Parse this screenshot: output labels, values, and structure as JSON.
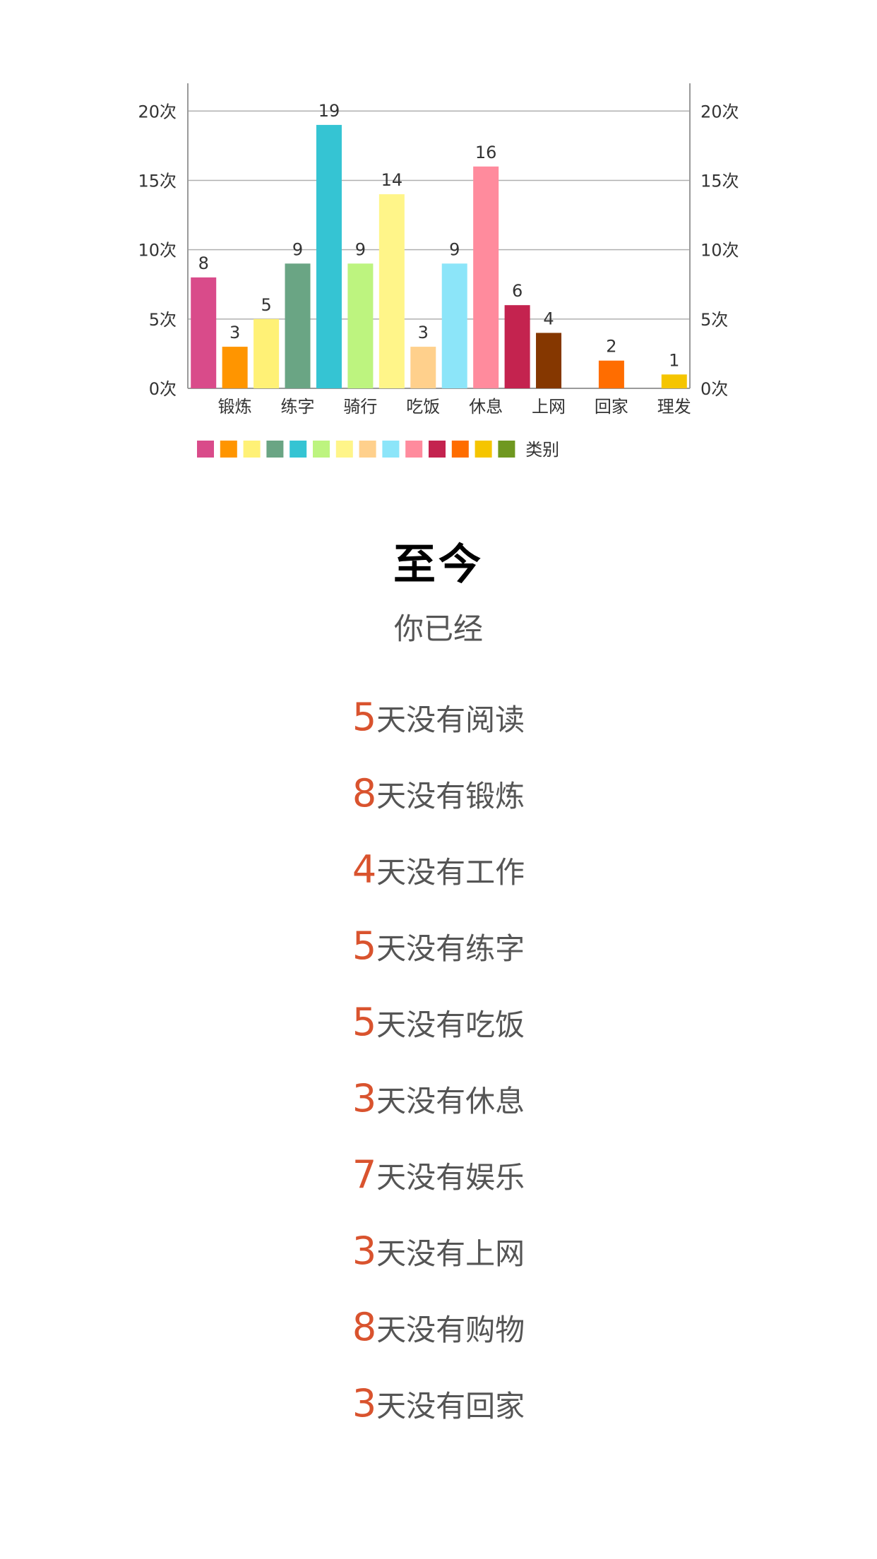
{
  "chart_data": {
    "type": "bar",
    "categories": [
      "",
      "锻炼",
      "",
      "练字",
      "",
      "骑行",
      "",
      "吃饭",
      "",
      "休息",
      "",
      "上网",
      "",
      "回家",
      "",
      "理发"
    ],
    "values": [
      8,
      3,
      5,
      9,
      19,
      9,
      14,
      3,
      9,
      16,
      6,
      4,
      null,
      2,
      null,
      1
    ],
    "colors": [
      "#d94b8a",
      "#ff9500",
      "#fff176",
      "#6aa584",
      "#35c4d3",
      "#bdf47f",
      "#fff589",
      "#ffd08c",
      "#8ce5f9",
      "#ff8b9d",
      "#c4234f",
      "#853700",
      "#ff6d00",
      "#f5c500",
      "#6f9820"
    ],
    "ylim": [
      0,
      22
    ],
    "yticks": [
      0,
      5,
      10,
      15,
      20
    ],
    "ytick_labels": [
      "0次",
      "5次",
      "10次",
      "15次",
      "20次"
    ],
    "legend_colors": [
      "#d94b8a",
      "#ff9500",
      "#fff176",
      "#6aa584",
      "#35c4d3",
      "#bdf47f",
      "#fff589",
      "#ffd08c",
      "#8ce5f9",
      "#ff8b9d",
      "#c4234f",
      "#ff6d00",
      "#f5c500",
      "#6f9820"
    ],
    "legend_label": "类别",
    "legend_position": "bottom-left",
    "grid": true
  },
  "summary": {
    "title": "至今",
    "subtitle": "你已经",
    "items": [
      {
        "count": "5",
        "text": "天没有阅读"
      },
      {
        "count": "8",
        "text": "天没有锻炼"
      },
      {
        "count": "4",
        "text": "天没有工作"
      },
      {
        "count": "5",
        "text": "天没有练字"
      },
      {
        "count": "5",
        "text": "天没有吃饭"
      },
      {
        "count": "3",
        "text": "天没有休息"
      },
      {
        "count": "7",
        "text": "天没有娱乐"
      },
      {
        "count": "3",
        "text": "天没有上网"
      },
      {
        "count": "8",
        "text": "天没有购物"
      },
      {
        "count": "3",
        "text": "天没有回家"
      }
    ]
  }
}
